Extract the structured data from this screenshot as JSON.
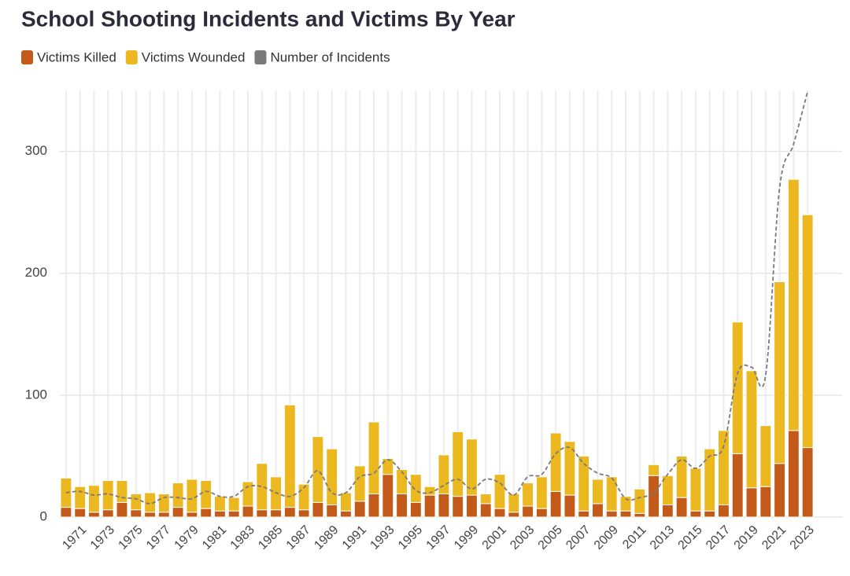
{
  "chart_data": {
    "type": "bar",
    "stacked": true,
    "title": "School Shooting Incidents and Victims By Year",
    "categories": [
      null,
      "1971",
      null,
      "1973",
      null,
      "1975",
      null,
      "1977",
      null,
      "1979",
      null,
      "1981",
      null,
      "1983",
      null,
      "1985",
      null,
      "1987",
      null,
      "1989",
      null,
      "1991",
      null,
      "1993",
      null,
      "1995",
      null,
      "1997",
      null,
      "1999",
      null,
      "2001",
      null,
      "2003",
      null,
      "2005",
      null,
      "2007",
      null,
      "2009",
      null,
      "2011",
      null,
      "2013",
      null,
      "2015",
      null,
      "2017",
      null,
      "2019",
      null,
      "2021",
      null,
      "2023"
    ],
    "series": [
      {
        "name": "Victims Killed",
        "color": "#c45a1a",
        "type": "bar",
        "values": [
          8,
          7,
          4,
          6,
          12,
          6,
          4,
          4,
          8,
          4,
          7,
          5,
          5,
          9,
          6,
          6,
          8,
          6,
          12,
          10,
          5,
          13,
          19,
          35,
          19,
          12,
          18,
          19,
          17,
          18,
          11,
          7,
          4,
          9,
          7,
          21,
          18,
          5,
          11,
          5,
          5,
          3,
          34,
          10,
          16,
          5,
          5,
          10,
          52,
          24,
          25,
          44,
          71,
          57
        ]
      },
      {
        "name": "Victims Wounded",
        "color": "#ecb820",
        "type": "bar",
        "values": [
          24,
          18,
          22,
          24,
          18,
          13,
          16,
          15,
          20,
          27,
          23,
          12,
          11,
          20,
          38,
          27,
          84,
          21,
          54,
          46,
          15,
          29,
          59,
          13,
          20,
          23,
          7,
          32,
          53,
          46,
          8,
          28,
          15,
          19,
          26,
          48,
          44,
          45,
          20,
          28,
          12,
          20,
          9,
          24,
          34,
          35,
          51,
          61,
          108,
          96,
          50,
          149,
          206,
          191
        ]
      },
      {
        "name": "Number of Incidents",
        "color": "#7a7a7a",
        "type": "line",
        "values": [
          20,
          21,
          18,
          19,
          16,
          15,
          11,
          16,
          16,
          15,
          21,
          17,
          17,
          25,
          25,
          20,
          17,
          24,
          38,
          20,
          20,
          33,
          36,
          47,
          37,
          22,
          20,
          26,
          31,
          23,
          31,
          28,
          18,
          33,
          35,
          52,
          57,
          44,
          36,
          32,
          15,
          16,
          20,
          35,
          47,
          40,
          50,
          58,
          118,
          123,
          116,
          270,
          306,
          349
        ]
      }
    ],
    "ylim": [
      0,
      350
    ],
    "yticks": [
      0,
      100,
      200,
      300
    ],
    "grid": true
  }
}
